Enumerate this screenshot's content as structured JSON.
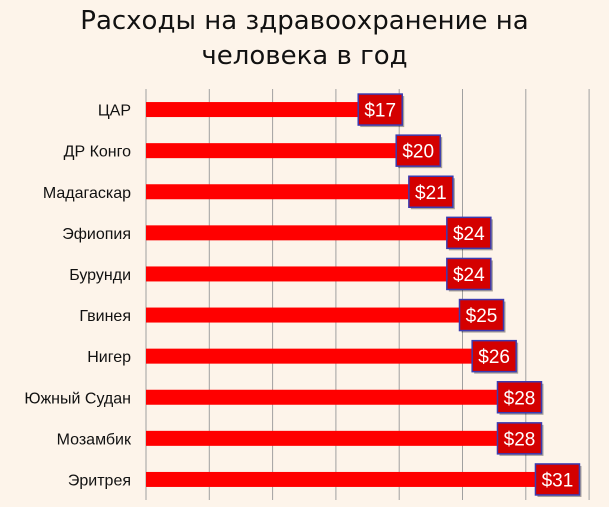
{
  "chart_data": {
    "type": "bar",
    "orientation": "horizontal",
    "title_line1": "Расходы на здравоохранение на",
    "title_line2": "человека в год",
    "categories": [
      "ЦАР",
      "ДР Конго",
      "Мадагаскар",
      "Эфиопия",
      "Бурунди",
      "Гвинея",
      "Нигер",
      "Южный Судан",
      "Мозамбик",
      "Эритрея"
    ],
    "values": [
      17,
      20,
      21,
      24,
      24,
      25,
      26,
      28,
      28,
      31
    ],
    "value_labels": [
      "$17",
      "$20",
      "$21",
      "$24",
      "$24",
      "$25",
      "$26",
      "$28",
      "$28",
      "$31"
    ],
    "xlim": [
      0,
      35
    ],
    "grid": true,
    "legend": "none",
    "colors": {
      "bar": "#ff0000",
      "label_box": "#d40000",
      "label_border": "#3b3bb0",
      "grid": "#a0a0a0",
      "background": "#fdf4ea"
    }
  }
}
